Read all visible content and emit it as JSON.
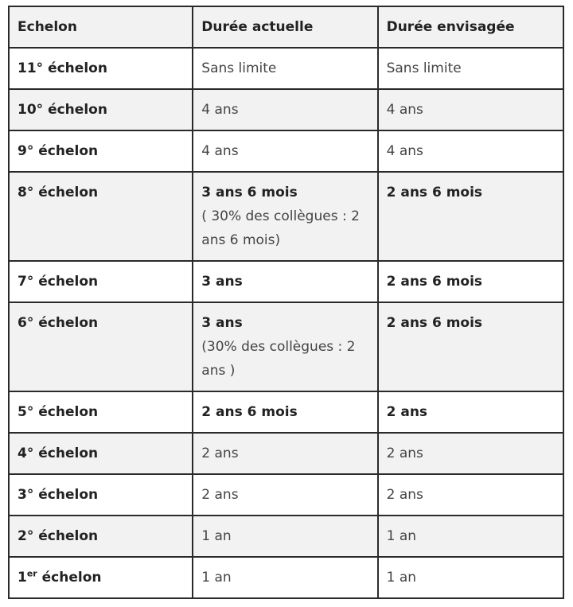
{
  "headers": [
    "Echelon",
    "Durée actuelle",
    "Durée envisagée"
  ],
  "rows": [
    {
      "echelon": "11° échelon",
      "actuelle": "Sans limite",
      "envisagee": "Sans limite",
      "bold": false
    },
    {
      "echelon": "10° échelon",
      "actuelle": "4 ans",
      "envisagee": "4 ans",
      "bold": false
    },
    {
      "echelon": "9° échelon",
      "actuelle": "4 ans",
      "envisagee": "4 ans",
      "bold": false
    },
    {
      "echelon": "8° échelon",
      "actuelle": "3 ans 6 mois",
      "actuelle_note": "( 30% des collègues : 2 ans 6 mois)",
      "envisagee": "2 ans 6 mois",
      "bold": true
    },
    {
      "echelon": "7° échelon",
      "actuelle": "3 ans",
      "envisagee": "2 ans 6 mois",
      "bold": true
    },
    {
      "echelon": "6° échelon",
      "actuelle": "3 ans",
      "actuelle_note": "(30% des collègues : 2 ans )",
      "envisagee": "2 ans 6 mois",
      "bold": true
    },
    {
      "echelon": "5° échelon",
      "actuelle": "2 ans 6 mois",
      "envisagee": "2 ans",
      "bold": true
    },
    {
      "echelon": "4° échelon",
      "actuelle": "2 ans",
      "envisagee": "2 ans",
      "bold": false
    },
    {
      "echelon": "3° échelon",
      "actuelle": "2 ans",
      "envisagee": "2 ans",
      "bold": false
    },
    {
      "echelon": "2° échelon",
      "actuelle": "1 an",
      "envisagee": "1 an",
      "bold": false
    },
    {
      "echelon": "1",
      "echelon_sup": "er",
      "echelon_suffix": " échelon",
      "actuelle": "1 an",
      "envisagee": "1 an",
      "bold": false
    }
  ],
  "colors": {
    "border": "#2a2a2a",
    "stripe": "#f2f2f2",
    "text": "#444444"
  }
}
